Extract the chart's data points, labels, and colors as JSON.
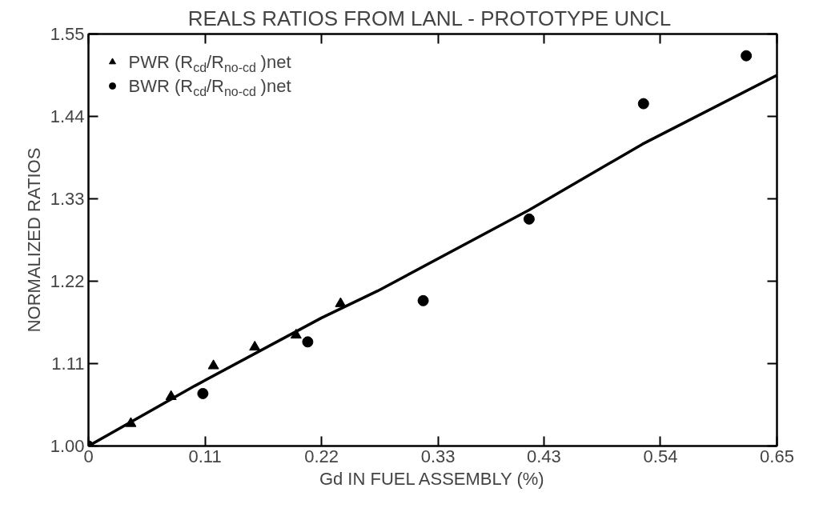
{
  "chart_data": {
    "type": "scatter",
    "title": "REALS RATIOS FROM LANL -  PROTOTYPE UNCL",
    "xlabel": "Gd IN FUEL ASSEMBLY (%)",
    "ylabel": "NORMALIZED RATIOS",
    "xlim": [
      0,
      0.65
    ],
    "ylim": [
      1.0,
      1.55
    ],
    "xticks": [
      0,
      0.11,
      0.22,
      0.33,
      0.43,
      0.54,
      0.65
    ],
    "yticks": [
      {
        "value": 1.0,
        "label": "1.00"
      },
      1.11,
      1.22,
      1.33,
      1.44,
      1.55
    ],
    "grid": false,
    "legend": "top left",
    "series": [
      {
        "name": "PWR (R$_{cd}$/R$_{no-cd}$ )net",
        "marker": "triangle",
        "color": "#000000",
        "x": [
          0.04,
          0.078,
          0.118,
          0.157,
          0.196,
          0.238
        ],
        "values": [
          1.03,
          1.066,
          1.107,
          1.132,
          1.148,
          1.19
        ]
      },
      {
        "name": "BWR (R$_{cd}$/R$_{no-cd}$ )net",
        "marker": "circle",
        "color": "#000000",
        "x": [
          0.0,
          0.108,
          0.207,
          0.316,
          0.416,
          0.524,
          0.621
        ],
        "values": [
          1.0,
          1.07,
          1.139,
          1.194,
          1.303,
          1.457,
          1.521
        ]
      },
      {
        "type": "line",
        "color": "#000000",
        "line_style": "solid",
        "x": [
          0.0,
          0.1,
          0.22,
          0.273,
          0.416,
          0.523,
          0.65
        ],
        "values": [
          1.0,
          1.08,
          1.171,
          1.207,
          1.315,
          1.403,
          1.495
        ]
      }
    ]
  }
}
